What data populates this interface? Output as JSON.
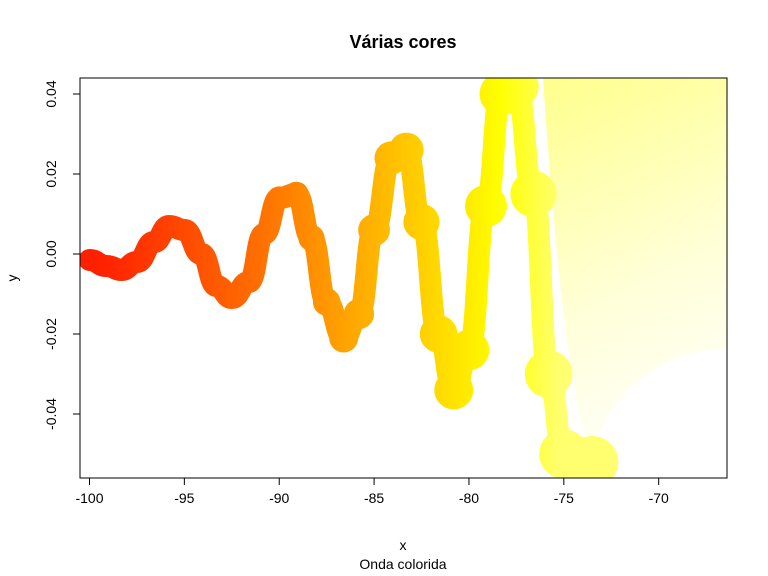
{
  "chart_data": {
    "type": "area",
    "title": "Várias cores",
    "xlabel": "x",
    "ylabel": "y",
    "subtitle": "Onda colorida",
    "xlim": [
      -100.5,
      -66.4
    ],
    "ylim": [
      -0.056,
      0.044
    ],
    "x_ticks": [
      -100,
      -95,
      -90,
      -85,
      -80,
      -75,
      -70
    ],
    "y_ticks": [
      -0.04,
      -0.02,
      0.0,
      0.02,
      0.04
    ],
    "x_tick_labels": [
      "-100",
      "-95",
      "-90",
      "-85",
      "-80",
      "-75",
      "-70"
    ],
    "y_tick_labels": [
      "-0.04",
      "-0.02",
      "0.00",
      "0.02",
      "0.04"
    ],
    "grid": false,
    "series": [
      {
        "x": [
          -100,
          -99.1,
          -98.3,
          -97.5,
          -96.6,
          -95.8,
          -95,
          -94.1,
          -93.3,
          -92.5,
          -91.6,
          -90.8,
          -90,
          -89.1,
          -88.3,
          -87.5,
          -86.6,
          -85.8,
          -85,
          -84.1,
          -83.3,
          -82.5,
          -81.6,
          -80.8,
          -80,
          -79.1,
          -78.3,
          -77.5,
          -76.6,
          -75.8,
          -75,
          -74.1,
          -73.5
        ],
        "values": [
          -0.0015,
          -0.003,
          -0.004,
          -0.002,
          0.003,
          0.007,
          0.006,
          0.0,
          -0.008,
          -0.011,
          -0.007,
          0.005,
          0.014,
          0.015,
          0.004,
          -0.012,
          -0.021,
          -0.015,
          0.006,
          0.024,
          0.026,
          0.008,
          -0.02,
          -0.034,
          -0.024,
          0.012,
          0.04,
          0.042,
          0.015,
          -0.03,
          -0.05,
          -0.052,
          -0.052
        ]
      }
    ],
    "colors": [
      "#ff2000",
      "#ff6a00",
      "#ffa500",
      "#ffd200",
      "#ffff00",
      "#ffff80",
      "#ffffff"
    ]
  }
}
